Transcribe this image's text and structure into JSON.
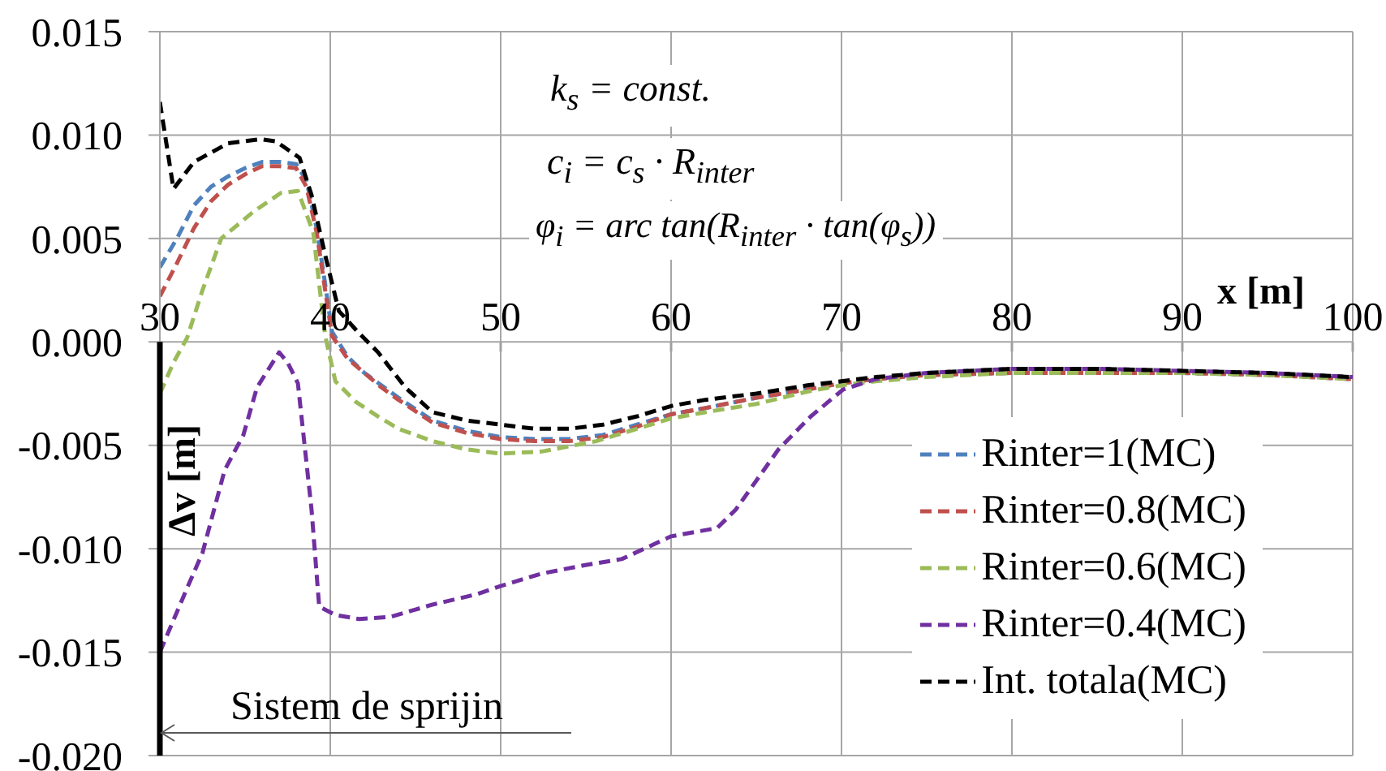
{
  "chart_data": {
    "type": "line",
    "xlabel": "x [m]",
    "ylabel": "Δv [m]",
    "annotations": [
      "k$_{s}$ = const.",
      "c$_{i}$ = c$_{s}$ · R$_{inter}$",
      "φ$_{i}$ = arc tan(R$_{inter}$ · tan(φ$_{s}$))",
      "Sistem de sprijin"
    ],
    "xlim": [
      30,
      100
    ],
    "xticks": [
      30,
      40,
      50,
      60,
      70,
      80,
      90,
      100
    ],
    "ylim": [
      -0.02,
      0.015
    ],
    "yticks": [
      {
        "value": -0.02,
        "label": "-0.020"
      },
      {
        "value": -0.015,
        "label": "-0.015"
      },
      {
        "value": -0.01,
        "label": "-0.010"
      },
      {
        "value": -0.005,
        "label": "-0.005"
      },
      {
        "value": 0,
        "label": "0.000"
      },
      {
        "value": 0.005,
        "label": "0.005"
      },
      {
        "value": 0.01,
        "label": "0.010"
      },
      {
        "value": 0.015,
        "label": "0.015"
      }
    ],
    "grid": true,
    "legend": "bottom right",
    "marker": "none",
    "line_style": "dashed",
    "series": [
      {
        "name": "Rinter=1(MC)",
        "color": "#4f81bd",
        "x": [
          30,
          31,
          32,
          33,
          34,
          35,
          36,
          37,
          38,
          38.6,
          39.2,
          39.7,
          40.1,
          41,
          42,
          43,
          44,
          46,
          48,
          50,
          52,
          54,
          56,
          58,
          60,
          62,
          65,
          68,
          70,
          72,
          75,
          80,
          85,
          90,
          95,
          100
        ],
        "values": [
          0.0036,
          0.005,
          0.0066,
          0.0075,
          0.008,
          0.0084,
          0.0087,
          0.0087,
          0.0086,
          0.0078,
          0.0055,
          0.0028,
          0.0005,
          -0.0007,
          -0.0015,
          -0.0021,
          -0.0027,
          -0.0038,
          -0.0043,
          -0.0046,
          -0.0047,
          -0.0047,
          -0.0045,
          -0.004,
          -0.0035,
          -0.0032,
          -0.0027,
          -0.0023,
          -0.002,
          -0.0018,
          -0.0016,
          -0.0015,
          -0.0015,
          -0.0015,
          -0.0016,
          -0.0018
        ]
      },
      {
        "name": "Rinter=0.8(MC)",
        "color": "#c0504d",
        "x": [
          30,
          31,
          32,
          33,
          34,
          35,
          36,
          37,
          38,
          38.6,
          39.2,
          39.7,
          40.1,
          41,
          42,
          43,
          44,
          46,
          48,
          50,
          52,
          54,
          56,
          58,
          60,
          62,
          65,
          68,
          70,
          72,
          75,
          80,
          85,
          90,
          95,
          100
        ],
        "values": [
          0.0022,
          0.0038,
          0.0055,
          0.0068,
          0.0076,
          0.0081,
          0.0085,
          0.0085,
          0.0084,
          0.0075,
          0.0053,
          0.0025,
          0.0003,
          -0.0008,
          -0.0015,
          -0.0022,
          -0.0028,
          -0.0039,
          -0.0044,
          -0.0047,
          -0.0048,
          -0.0048,
          -0.0046,
          -0.0041,
          -0.0035,
          -0.0032,
          -0.0027,
          -0.0023,
          -0.002,
          -0.0018,
          -0.0016,
          -0.0015,
          -0.0015,
          -0.0015,
          -0.0016,
          -0.0018
        ]
      },
      {
        "name": "Rinter=0.6(MC)",
        "color": "#9bbb59",
        "x": [
          30,
          30.8,
          31.6,
          32.5,
          33.6,
          35.5,
          37.1,
          38.1,
          39,
          39.7,
          40.3,
          41.5,
          42.8,
          44,
          46,
          48,
          50,
          52.4,
          55.6,
          58,
          60,
          62,
          65,
          68,
          70,
          72,
          75,
          80,
          85,
          90,
          95,
          100
        ],
        "values": [
          -0.0025,
          -0.001,
          0.0002,
          0.0025,
          0.005,
          0.0063,
          0.0072,
          0.0073,
          0.0053,
          0.0003,
          -0.0019,
          -0.0029,
          -0.0036,
          -0.0042,
          -0.0048,
          -0.0052,
          -0.0054,
          -0.0053,
          -0.0048,
          -0.0042,
          -0.0037,
          -0.0034,
          -0.003,
          -0.0024,
          -0.0021,
          -0.0019,
          -0.0017,
          -0.0015,
          -0.0015,
          -0.0015,
          -0.0016,
          -0.0018
        ]
      },
      {
        "name": "Rinter=0.4(MC)",
        "color": "#7030a0",
        "x": [
          30,
          31.6,
          32.5,
          33.8,
          34.9,
          35.7,
          37,
          37.5,
          38.1,
          38.9,
          39.35,
          40.3,
          41.7,
          43.5,
          46,
          48.6,
          50,
          52.4,
          54.9,
          57.1,
          60,
          62.7,
          63.8,
          66.3,
          68.2,
          70.1,
          72,
          75,
          80,
          85,
          90,
          95,
          100
        ],
        "values": [
          -0.015,
          -0.0119,
          -0.0102,
          -0.0062,
          -0.0045,
          -0.0022,
          -0.0005,
          -0.001,
          -0.002,
          -0.0081,
          -0.0128,
          -0.0132,
          -0.0134,
          -0.0133,
          -0.0127,
          -0.0122,
          -0.0118,
          -0.0112,
          -0.0108,
          -0.0105,
          -0.0094,
          -0.009,
          -0.0081,
          -0.0052,
          -0.0036,
          -0.0023,
          -0.0018,
          -0.0015,
          -0.0013,
          -0.0013,
          -0.0014,
          -0.0015,
          -0.0017
        ]
      },
      {
        "name": "Int. totala(MC)",
        "color": "#000000",
        "x": [
          30,
          30.8,
          32,
          34,
          35.9,
          36.8,
          38.2,
          38.9,
          39.7,
          40.5,
          41.6,
          42.8,
          44.4,
          46,
          48,
          50,
          52,
          54,
          56,
          58,
          60,
          62,
          65,
          68,
          70,
          72,
          75,
          80,
          85,
          90,
          95,
          100
        ],
        "values": [
          0.0116,
          0.0074,
          0.0087,
          0.0096,
          0.0098,
          0.0097,
          0.0089,
          0.0071,
          0.0042,
          0.0015,
          0.0005,
          -0.0005,
          -0.0022,
          -0.0034,
          -0.0038,
          -0.004,
          -0.0042,
          -0.0042,
          -0.004,
          -0.0036,
          -0.0031,
          -0.0028,
          -0.0025,
          -0.0021,
          -0.0019,
          -0.0017,
          -0.0015,
          -0.0013,
          -0.0013,
          -0.0014,
          -0.0015,
          -0.0017
        ]
      }
    ]
  }
}
